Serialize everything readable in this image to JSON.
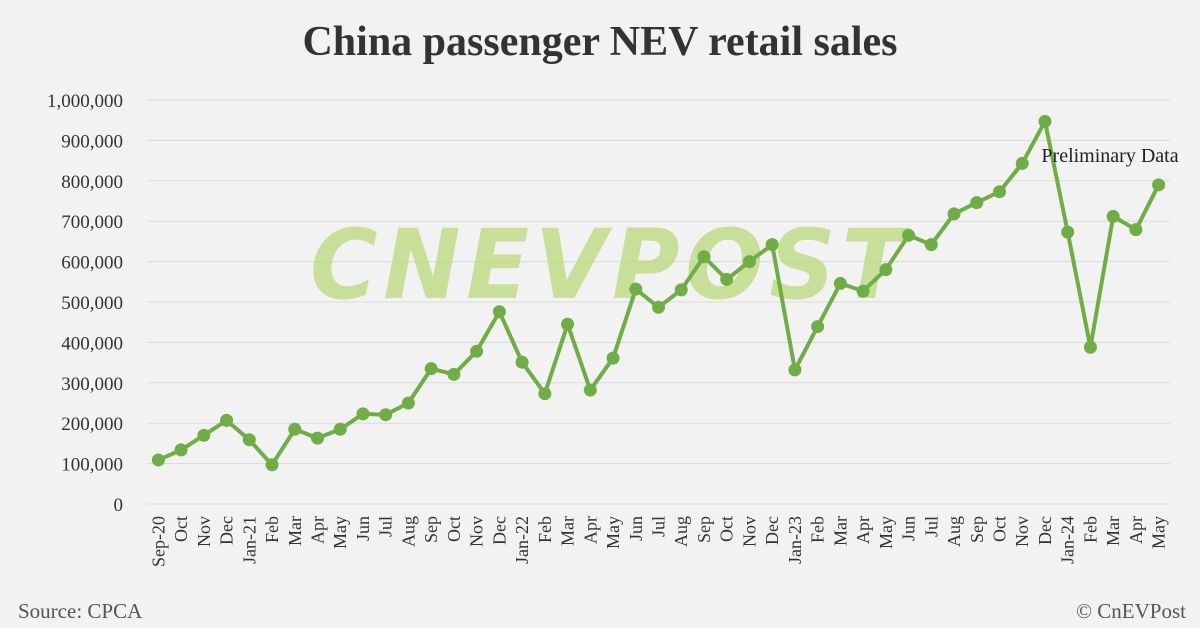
{
  "colors": {
    "background": "#f2f2f2",
    "series": "#70ad47",
    "watermark": "#b9d97a",
    "grid": "#d9d9d9"
  },
  "footer": {
    "source": "Source: CPCA",
    "copyright": "© CnEVPost"
  },
  "watermark": {
    "text": "CNEVPOST"
  },
  "chart_data": {
    "type": "line",
    "title": "China passenger NEV retail sales",
    "xlabel": "",
    "ylabel": "",
    "ylim": [
      0,
      1000000
    ],
    "yticks": [
      "0",
      "100,000",
      "200,000",
      "300,000",
      "400,000",
      "500,000",
      "600,000",
      "700,000",
      "800,000",
      "900,000",
      "1,000,000"
    ],
    "grid": true,
    "legend": "none",
    "annotation": "Preliminary Data",
    "categories": [
      "Sep-20",
      "Oct",
      "Nov",
      "Dec",
      "Jan-21",
      "Feb",
      "Mar",
      "Apr",
      "May",
      "Jun",
      "Jul",
      "Aug",
      "Sep",
      "Oct",
      "Nov",
      "Dec",
      "Jan-22",
      "Feb",
      "Mar",
      "Apr",
      "May",
      "Jun",
      "Jul",
      "Aug",
      "Sep",
      "Oct",
      "Nov",
      "Dec",
      "Jan-23",
      "Feb",
      "Mar",
      "Apr",
      "May",
      "Jun",
      "Jul",
      "Aug",
      "Sep",
      "Oct",
      "Nov",
      "Dec",
      "Jan-24",
      "Feb",
      "Mar",
      "Apr",
      "May"
    ],
    "series": [
      {
        "values": [
          109000,
          134000,
          170000,
          207000,
          159000,
          97000,
          185000,
          163000,
          185000,
          223000,
          221000,
          250000,
          335000,
          321000,
          378000,
          476000,
          351000,
          273000,
          445000,
          282000,
          361000,
          532000,
          487000,
          530000,
          612000,
          556000,
          600000,
          642000,
          332000,
          439000,
          546000,
          527000,
          580000,
          665000,
          642000,
          718000,
          746000,
          773000,
          843000,
          947000,
          673000,
          388000,
          712000,
          679000,
          790000
        ]
      }
    ]
  }
}
